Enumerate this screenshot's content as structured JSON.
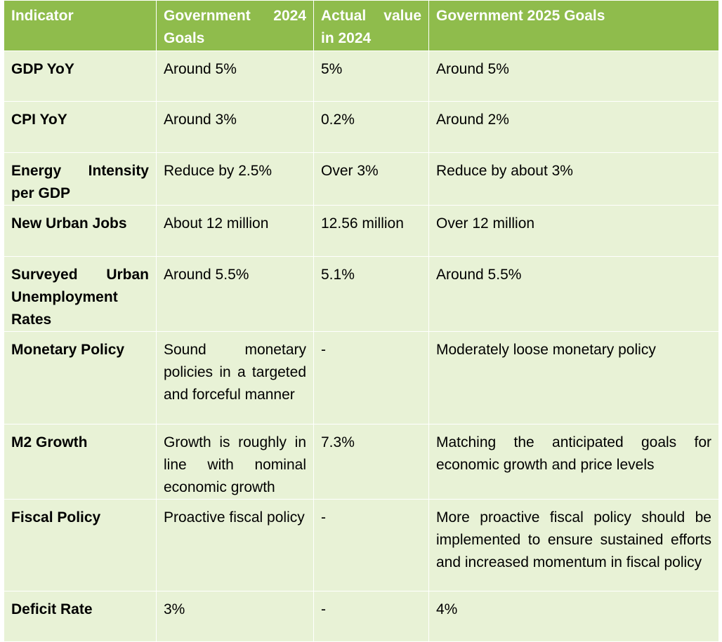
{
  "table": {
    "headers": [
      "Indicator",
      "Government 2024 Goals",
      "Actual value in 2024",
      "Government 2025 Goals"
    ],
    "rows": [
      [
        "GDP YoY",
        "Around 5%",
        "5%",
        "Around 5%"
      ],
      [
        "CPI YoY",
        "Around 3%",
        "0.2%",
        "Around 2%"
      ],
      [
        "Energy Intensity per GDP",
        "Reduce by 2.5%",
        "Over 3%",
        "Reduce by about 3%"
      ],
      [
        "New Urban Jobs",
        "About 12 million",
        "12.56 million",
        "Over 12 million"
      ],
      [
        "Surveyed Urban Unemployment Rates",
        "Around 5.5%",
        "5.1%",
        "Around 5.5%"
      ],
      [
        "Monetary Policy",
        "Sound monetary policies in a targeted and forceful manner",
        "-",
        "Moderately loose monetary policy"
      ],
      [
        "M2 Growth",
        "Growth is roughly in line with nominal economic growth",
        "7.3%",
        "Matching the anticipated goals for economic growth and price levels"
      ],
      [
        "Fiscal Policy",
        "Proactive fiscal policy",
        "-",
        "More proactive fiscal policy should be implemented to ensure sustained efforts and increased momentum in fiscal policy"
      ],
      [
        "Deficit Rate",
        "3%",
        "-",
        "4%"
      ]
    ]
  },
  "colors": {
    "header_bg": "#8fbc4c",
    "header_text": "#ffffff",
    "row_bg": "#e8f2d6"
  }
}
